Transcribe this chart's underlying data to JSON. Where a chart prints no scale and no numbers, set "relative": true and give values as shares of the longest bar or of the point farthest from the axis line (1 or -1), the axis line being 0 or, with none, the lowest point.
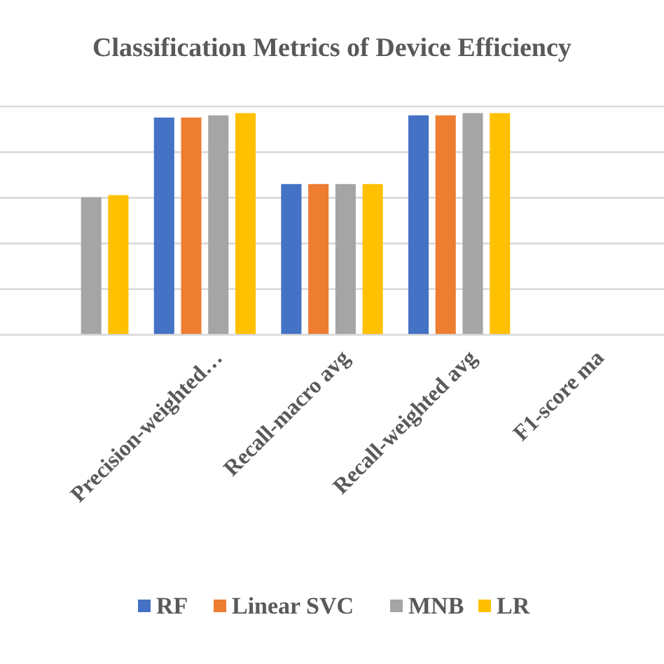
{
  "chart_data": {
    "type": "bar",
    "title": "Classification Metrics of Device Efficiency",
    "relative": true,
    "grid": "y",
    "legend": "bottom",
    "categories": [
      null,
      "Precision-weighted…",
      "Recall-macro avg",
      "Recall-weighted avg",
      "F1-score ma"
    ],
    "series": [
      {
        "name": "RF",
        "color": "#4472c4",
        "values": [
          null,
          0.98,
          0.68,
          0.99,
          null
        ]
      },
      {
        "name": "Linear SVC",
        "color": "#ed7d31",
        "values": [
          null,
          0.98,
          0.68,
          0.99,
          null
        ]
      },
      {
        "name": "MNB",
        "color": "#a5a5a5",
        "values": [
          0.62,
          0.99,
          0.68,
          1,
          null
        ]
      },
      {
        "name": "LR",
        "color": "#ffc000",
        "values": [
          0.63,
          1,
          0.68,
          1,
          null
        ]
      }
    ]
  }
}
